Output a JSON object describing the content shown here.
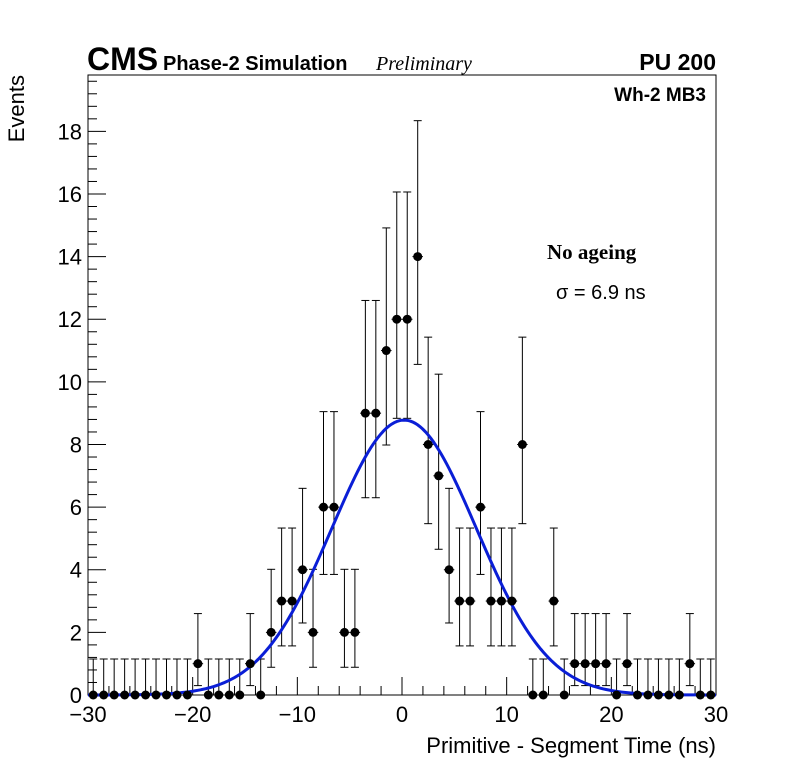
{
  "chart_data": {
    "type": "scatter",
    "header": {
      "experiment": "CMS",
      "detail": "Phase-2 Simulation",
      "status": "Preliminary",
      "pileup": "PU 200"
    },
    "region_label": "Wh-2 MB3",
    "annotation": {
      "title": "No ageing",
      "sigma_text": "σ = 6.9 ns"
    },
    "xlabel": "Primitive - Segment Time (ns)",
    "ylabel": "Events",
    "xlim": [
      -30,
      30
    ],
    "ylim": [
      0,
      19.8
    ],
    "x_ticks": [
      -30,
      -20,
      -10,
      0,
      10,
      20,
      30
    ],
    "x_tick_labels": [
      "−30",
      "−20",
      "−10",
      "0",
      "10",
      "20",
      "30"
    ],
    "y_ticks": [
      0,
      2,
      4,
      6,
      8,
      10,
      12,
      14,
      16,
      18
    ],
    "y_tick_labels": [
      "0",
      "2",
      "4",
      "6",
      "8",
      "10",
      "12",
      "14",
      "16",
      "18"
    ],
    "bin_width": 1,
    "series": [
      {
        "x": [
          -29.5,
          -28.5,
          -27.5,
          -26.5,
          -25.5,
          -24.5,
          -23.5,
          -22.5,
          -21.5,
          -20.5,
          -19.5,
          -18.5,
          -17.5,
          -16.5,
          -15.5,
          -14.5,
          -13.5,
          -12.5,
          -11.5,
          -10.5,
          -9.5,
          -8.5,
          -7.5,
          -6.5,
          -5.5,
          -4.5,
          -3.5,
          -2.5,
          -1.5,
          -0.5,
          0.5,
          1.5,
          2.5,
          3.5,
          4.5,
          5.5,
          6.5,
          7.5,
          8.5,
          9.5,
          10.5,
          11.5,
          12.5,
          13.5,
          14.5,
          15.5,
          16.5,
          17.5,
          18.5,
          19.5,
          20.5,
          21.5,
          22.5,
          23.5,
          24.5,
          25.5,
          26.5,
          27.5,
          28.5,
          29.5
        ],
        "y": [
          0,
          0,
          0,
          0,
          0,
          0,
          0,
          0,
          0,
          0,
          1,
          0,
          0,
          0,
          0,
          1,
          0,
          2,
          3,
          3,
          4,
          2,
          6,
          6,
          2,
          2,
          9,
          9,
          11,
          12,
          12,
          14,
          8,
          7,
          4,
          3,
          3,
          6,
          3,
          3,
          3,
          8,
          0,
          0,
          3,
          0,
          1,
          1,
          1,
          1,
          0,
          1,
          0,
          0,
          0,
          0,
          0,
          1,
          0,
          0
        ]
      },
      {
        "type": "gaussian-fit",
        "amplitude": 8.78,
        "mean": 0.2,
        "sigma": 6.9,
        "range": [
          -30,
          30
        ]
      }
    ],
    "colors": {
      "points": "#000000",
      "fit": "#0a1ed6",
      "axes": "#000000"
    }
  }
}
